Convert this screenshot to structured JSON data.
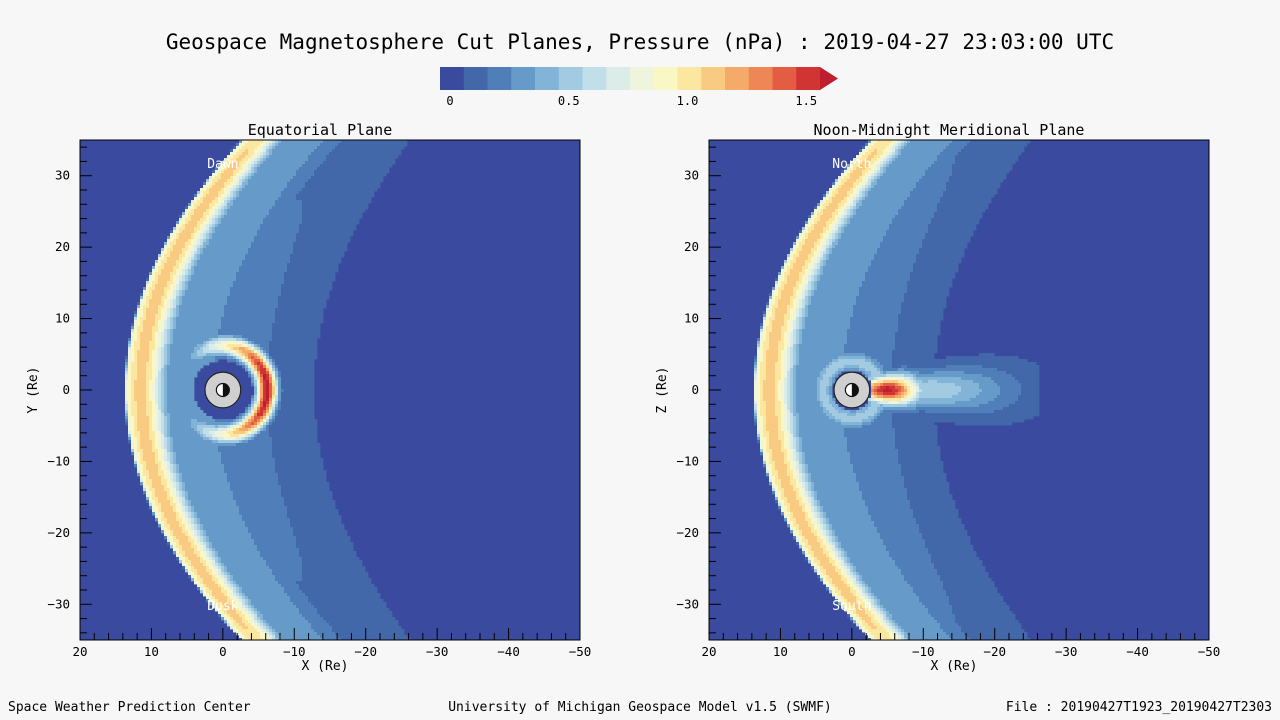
{
  "title": "Geospace Magnetosphere Cut Planes, Pressure (nPa) : 2019-04-27 23:03:00 UTC",
  "colors": {
    "scale": [
      "#3a4a9e",
      "#4268aa",
      "#4f7eb8",
      "#669bc9",
      "#82b4d8",
      "#a2cbe1",
      "#c1dfe9",
      "#dcece8",
      "#eef5dc",
      "#f9f8c4",
      "#fbe7a0",
      "#f9cb82",
      "#f6aa6a",
      "#ee8755",
      "#e35d43",
      "#d03433",
      "#bf1e2e"
    ],
    "background": "#3a4a9e",
    "earth_fill": "#cfcfcf"
  },
  "colorbar": {
    "ticks": [
      "0",
      "0.5",
      "1.0",
      "1.5"
    ],
    "values": [
      0,
      0.5,
      1.0,
      1.5
    ],
    "min": 0,
    "max": 1.6
  },
  "panels": [
    {
      "title": "Equatorial Plane",
      "ylabel": "Y (Re)",
      "xlabel": "X (Re)",
      "top_label": "Dawn",
      "bottom_label": "Dusk",
      "xticks": [
        "20",
        "10",
        "0",
        "−10",
        "−20",
        "−30",
        "−40",
        "−50"
      ],
      "yticks": [
        "30",
        "20",
        "10",
        "0",
        "−10",
        "−20",
        "−30"
      ]
    },
    {
      "title": "Noon-Midnight Meridional Plane",
      "ylabel": "Z (Re)",
      "xlabel": "X (Re)",
      "top_label": "North",
      "bottom_label": "South",
      "xticks": [
        "20",
        "10",
        "0",
        "−10",
        "−20",
        "−30",
        "−40",
        "−50"
      ],
      "yticks": [
        "30",
        "20",
        "10",
        "0",
        "−10",
        "−20",
        "−30"
      ]
    }
  ],
  "chart_data": [
    {
      "type": "heatmap",
      "title": "Equatorial Plane",
      "xlabel": "X (Re)",
      "ylabel": "Y (Re)",
      "xlim": [
        20,
        -50
      ],
      "ylim": [
        -35,
        35
      ],
      "variable": "Pressure (nPa)",
      "color_range": [
        0,
        1.6
      ],
      "features": {
        "magnetopause_pressure": 1.1,
        "ring_current_pressure": 1.6,
        "ring_current_peak_x": -5
      }
    },
    {
      "type": "heatmap",
      "title": "Noon-Midnight Meridional Plane",
      "xlabel": "X (Re)",
      "ylabel": "Z (Re)",
      "xlim": [
        20,
        -50
      ],
      "ylim": [
        -35,
        35
      ],
      "variable": "Pressure (nPa)",
      "color_range": [
        0,
        1.6
      ],
      "features": {
        "magnetopause_pressure": 1.1,
        "plasma_sheet_pressure": 1.6,
        "plasma_sheet_peak_x": -5
      }
    }
  ],
  "footer": {
    "left": "Space Weather Prediction Center",
    "center": "University of Michigan Geospace Model v1.5 (SWMF)",
    "right": "File : 20190427T1923_20190427T2303"
  }
}
